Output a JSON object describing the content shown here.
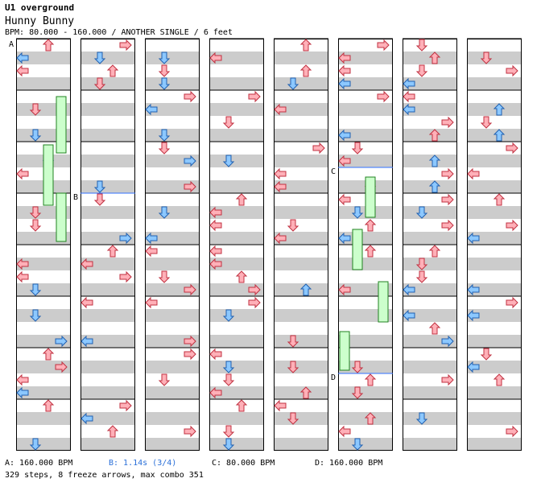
{
  "header": {
    "pack": "U1 overground",
    "song": "Hunny Bunny",
    "info": "BPM: 80.000 - 160.000 / ANOTHER SINGLE / 6 feet"
  },
  "markers": [
    "A",
    "B",
    "C",
    "D"
  ],
  "footer": {
    "legend_a": "A: 160.000 BPM",
    "legend_b": "B: 1.14s (3/4)",
    "legend_c": "C: 80.000 BPM",
    "legend_d": "D: 160.000 BPM",
    "stats": "329 steps, 8 freeze arrows, max combo 351"
  },
  "colors": {
    "quarter": "#ffb0b8",
    "eighth": "#8cc8ff",
    "freeze": "#ccffcc",
    "stripe": "#cccccc",
    "marker_line": "#3070ff",
    "legend_b": "#2a6fd8"
  },
  "chart_data": {
    "type": "step-chart",
    "columns": 8,
    "measures_per_column": 8,
    "lanes": [
      "left",
      "down",
      "up",
      "right"
    ],
    "total_steps": 329,
    "freeze_arrows": 8,
    "max_combo": 351
  }
}
